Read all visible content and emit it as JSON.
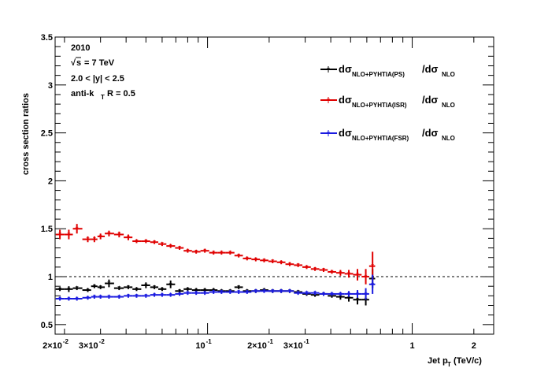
{
  "chart_data": {
    "type": "scatter",
    "x_scale": "log",
    "xlim": [
      0.018,
      2.5
    ],
    "ylim": [
      0.4,
      3.5
    ],
    "xlabel": "Jet p",
    "xlabel_sub": "T",
    "xlabel_unit": " (TeV/c)",
    "ylabel": "cross section ratios",
    "x_ticks": [
      {
        "v": 0.02,
        "m": "2×10",
        "e": "-2"
      },
      {
        "v": 0.03,
        "m": "3×10",
        "e": "-2"
      },
      {
        "v": 0.1,
        "m": "10",
        "e": "-1"
      },
      {
        "v": 0.2,
        "m": "2×10",
        "e": "-1"
      },
      {
        "v": 0.3,
        "m": "3×10",
        "e": "-1"
      },
      {
        "v": 1,
        "m": "1",
        "e": ""
      },
      {
        "v": 2,
        "m": "2",
        "e": ""
      }
    ],
    "y_ticks": [
      "0.5",
      "1",
      "1.5",
      "2",
      "2.5",
      "3",
      "3.5"
    ],
    "y_tick_values": [
      0.5,
      1,
      1.5,
      2,
      2.5,
      3,
      3.5
    ],
    "reference_line": 1,
    "annotations": {
      "year": "2010",
      "energy_sqrt": "s",
      "energy_rest": " = 7 TeV",
      "rapidity": "2.0 < |y| < 2.5",
      "algo_main": "anti-k",
      "algo_sub": "T",
      "algo_rest": " R = 0.5"
    },
    "series": [
      {
        "name": "PS",
        "legend_sub": "NLO+PYHTIA(PS)",
        "legend_den_sub": "NLO",
        "color": "#000000",
        "points": [
          [
            0.019,
            0.87,
            0.02
          ],
          [
            0.021,
            0.87,
            0.03
          ],
          [
            0.023,
            0.88,
            0.02
          ],
          [
            0.026,
            0.86,
            0.02
          ],
          [
            0.028,
            0.9,
            0.02
          ],
          [
            0.03,
            0.89,
            0.02
          ],
          [
            0.033,
            0.93,
            0.04
          ],
          [
            0.037,
            0.88,
            0.02
          ],
          [
            0.041,
            0.89,
            0.02
          ],
          [
            0.045,
            0.87,
            0.02
          ],
          [
            0.05,
            0.91,
            0.03
          ],
          [
            0.055,
            0.89,
            0.02
          ],
          [
            0.06,
            0.87,
            0.02
          ],
          [
            0.066,
            0.92,
            0.04
          ],
          [
            0.073,
            0.85,
            0.02
          ],
          [
            0.08,
            0.87,
            0.02
          ],
          [
            0.088,
            0.86,
            0.02
          ],
          [
            0.097,
            0.86,
            0.02
          ],
          [
            0.107,
            0.86,
            0.02
          ],
          [
            0.117,
            0.85,
            0.02
          ],
          [
            0.129,
            0.85,
            0.02
          ],
          [
            0.142,
            0.89,
            0.02
          ],
          [
            0.156,
            0.85,
            0.02
          ],
          [
            0.172,
            0.85,
            0.02
          ],
          [
            0.189,
            0.86,
            0.02
          ],
          [
            0.208,
            0.85,
            0.02
          ],
          [
            0.229,
            0.85,
            0.02
          ],
          [
            0.252,
            0.85,
            0.02
          ],
          [
            0.277,
            0.84,
            0.02
          ],
          [
            0.305,
            0.82,
            0.02
          ],
          [
            0.335,
            0.81,
            0.02
          ],
          [
            0.369,
            0.82,
            0.02
          ],
          [
            0.405,
            0.8,
            0.02
          ],
          [
            0.446,
            0.79,
            0.03
          ],
          [
            0.49,
            0.78,
            0.04
          ],
          [
            0.54,
            0.76,
            0.05
          ],
          [
            0.593,
            0.76,
            0.06
          ],
          [
            0.64,
            0.98,
            0.1
          ]
        ]
      },
      {
        "name": "ISR",
        "legend_sub": "NLO+PYHTIA(ISR)",
        "legend_den_sub": "NLO",
        "color": "#e00000",
        "points": [
          [
            0.019,
            1.44,
            0.05
          ],
          [
            0.021,
            1.44,
            0.05
          ],
          [
            0.023,
            1.5,
            0.05
          ],
          [
            0.026,
            1.39,
            0.03
          ],
          [
            0.028,
            1.39,
            0.03
          ],
          [
            0.03,
            1.42,
            0.03
          ],
          [
            0.033,
            1.45,
            0.03
          ],
          [
            0.037,
            1.44,
            0.03
          ],
          [
            0.041,
            1.41,
            0.03
          ],
          [
            0.045,
            1.37,
            0.02
          ],
          [
            0.05,
            1.37,
            0.02
          ],
          [
            0.055,
            1.36,
            0.02
          ],
          [
            0.06,
            1.34,
            0.02
          ],
          [
            0.066,
            1.32,
            0.02
          ],
          [
            0.073,
            1.3,
            0.02
          ],
          [
            0.08,
            1.27,
            0.02
          ],
          [
            0.088,
            1.26,
            0.02
          ],
          [
            0.097,
            1.27,
            0.02
          ],
          [
            0.107,
            1.25,
            0.02
          ],
          [
            0.117,
            1.25,
            0.02
          ],
          [
            0.129,
            1.25,
            0.02
          ],
          [
            0.142,
            1.22,
            0.02
          ],
          [
            0.156,
            1.19,
            0.02
          ],
          [
            0.172,
            1.18,
            0.02
          ],
          [
            0.189,
            1.17,
            0.02
          ],
          [
            0.208,
            1.16,
            0.02
          ],
          [
            0.229,
            1.15,
            0.02
          ],
          [
            0.252,
            1.13,
            0.02
          ],
          [
            0.277,
            1.12,
            0.02
          ],
          [
            0.305,
            1.1,
            0.02
          ],
          [
            0.335,
            1.08,
            0.02
          ],
          [
            0.369,
            1.07,
            0.02
          ],
          [
            0.405,
            1.05,
            0.02
          ],
          [
            0.446,
            1.04,
            0.03
          ],
          [
            0.49,
            1.03,
            0.04
          ],
          [
            0.54,
            1.02,
            0.06
          ],
          [
            0.593,
            1.0,
            0.08
          ],
          [
            0.64,
            1.11,
            0.15
          ]
        ]
      },
      {
        "name": "FSR",
        "legend_sub": "NLO+PYHTIA(FSR)",
        "legend_den_sub": "NLO",
        "color": "#1a1ae0",
        "points": [
          [
            0.019,
            0.77,
            0.02
          ],
          [
            0.021,
            0.77,
            0.02
          ],
          [
            0.023,
            0.77,
            0.02
          ],
          [
            0.026,
            0.78,
            0.02
          ],
          [
            0.028,
            0.79,
            0.02
          ],
          [
            0.03,
            0.79,
            0.02
          ],
          [
            0.033,
            0.79,
            0.02
          ],
          [
            0.037,
            0.79,
            0.02
          ],
          [
            0.041,
            0.8,
            0.02
          ],
          [
            0.045,
            0.8,
            0.02
          ],
          [
            0.05,
            0.8,
            0.02
          ],
          [
            0.055,
            0.81,
            0.02
          ],
          [
            0.06,
            0.81,
            0.02
          ],
          [
            0.066,
            0.81,
            0.02
          ],
          [
            0.073,
            0.82,
            0.02
          ],
          [
            0.08,
            0.83,
            0.02
          ],
          [
            0.088,
            0.83,
            0.02
          ],
          [
            0.097,
            0.83,
            0.02
          ],
          [
            0.107,
            0.84,
            0.02
          ],
          [
            0.117,
            0.84,
            0.02
          ],
          [
            0.129,
            0.84,
            0.02
          ],
          [
            0.142,
            0.84,
            0.02
          ],
          [
            0.156,
            0.84,
            0.02
          ],
          [
            0.172,
            0.85,
            0.02
          ],
          [
            0.189,
            0.85,
            0.02
          ],
          [
            0.208,
            0.85,
            0.02
          ],
          [
            0.229,
            0.85,
            0.02
          ],
          [
            0.252,
            0.85,
            0.02
          ],
          [
            0.277,
            0.83,
            0.02
          ],
          [
            0.305,
            0.83,
            0.02
          ],
          [
            0.335,
            0.83,
            0.02
          ],
          [
            0.369,
            0.82,
            0.02
          ],
          [
            0.405,
            0.82,
            0.02
          ],
          [
            0.446,
            0.82,
            0.02
          ],
          [
            0.49,
            0.82,
            0.03
          ],
          [
            0.54,
            0.82,
            0.04
          ],
          [
            0.593,
            0.82,
            0.06
          ],
          [
            0.64,
            0.92,
            0.1
          ]
        ]
      }
    ],
    "legend_prefix": "dσ",
    "legend_slash": "/dσ"
  }
}
